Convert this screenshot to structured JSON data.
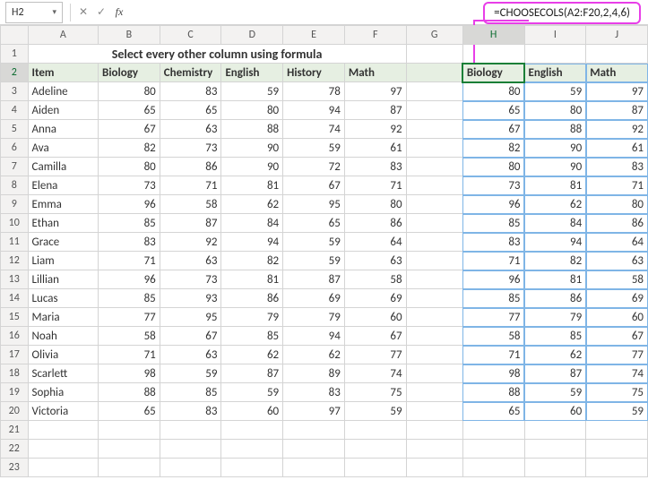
{
  "nameBox": "H2",
  "formula": "",
  "callout": "=CHOOSECOLS(A2:F20,2,4,6)",
  "columns": [
    "A",
    "B",
    "C",
    "D",
    "E",
    "F",
    "G",
    "H",
    "I",
    "J"
  ],
  "title": "Select every other column using formula",
  "leftHeaders": [
    "Item",
    "Biology",
    "Chemistry",
    "English",
    "History",
    "Math"
  ],
  "rightHeaders": [
    "Biology",
    "English",
    "Math"
  ],
  "rows": [
    {
      "n": "Adeline",
      "v": [
        80,
        83,
        59,
        78,
        97
      ]
    },
    {
      "n": "Aiden",
      "v": [
        65,
        65,
        80,
        94,
        87
      ]
    },
    {
      "n": "Anna",
      "v": [
        67,
        63,
        88,
        74,
        92
      ]
    },
    {
      "n": "Ava",
      "v": [
        82,
        73,
        90,
        59,
        61
      ]
    },
    {
      "n": "Camilla",
      "v": [
        80,
        86,
        90,
        72,
        83
      ]
    },
    {
      "n": "Elena",
      "v": [
        73,
        71,
        81,
        67,
        71
      ]
    },
    {
      "n": "Emma",
      "v": [
        96,
        58,
        62,
        95,
        80
      ]
    },
    {
      "n": "Ethan",
      "v": [
        85,
        87,
        84,
        65,
        86
      ]
    },
    {
      "n": "Grace",
      "v": [
        83,
        92,
        94,
        59,
        64
      ]
    },
    {
      "n": "Liam",
      "v": [
        71,
        63,
        82,
        59,
        63
      ]
    },
    {
      "n": "Lillian",
      "v": [
        96,
        73,
        81,
        87,
        58
      ]
    },
    {
      "n": "Lucas",
      "v": [
        85,
        93,
        86,
        69,
        69
      ]
    },
    {
      "n": "Maria",
      "v": [
        77,
        95,
        79,
        79,
        60
      ]
    },
    {
      "n": "Noah",
      "v": [
        58,
        67,
        85,
        94,
        67
      ]
    },
    {
      "n": "Olivia",
      "v": [
        71,
        63,
        62,
        62,
        77
      ]
    },
    {
      "n": "Scarlett",
      "v": [
        98,
        59,
        87,
        89,
        74
      ]
    },
    {
      "n": "Sophia",
      "v": [
        88,
        85,
        59,
        83,
        75
      ]
    },
    {
      "n": "Victoria",
      "v": [
        65,
        83,
        60,
        97,
        59
      ]
    }
  ],
  "pickCols": [
    0,
    2,
    4
  ],
  "emptyRows": [
    21,
    22,
    23
  ],
  "colors": {
    "headerFill": "#e6efe2",
    "active": "#1a7f37",
    "spill": "#7fb5e6",
    "callout": "#e83ee8"
  }
}
